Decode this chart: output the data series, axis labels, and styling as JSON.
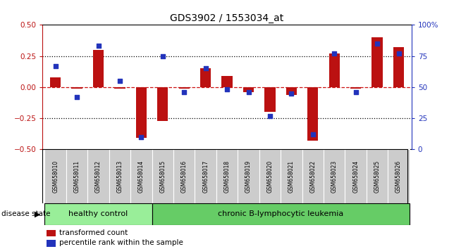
{
  "title": "GDS3902 / 1553034_at",
  "samples": [
    "GSM658010",
    "GSM658011",
    "GSM658012",
    "GSM658013",
    "GSM658014",
    "GSM658015",
    "GSM658016",
    "GSM658017",
    "GSM658018",
    "GSM658019",
    "GSM658020",
    "GSM658021",
    "GSM658022",
    "GSM658023",
    "GSM658024",
    "GSM658025",
    "GSM658026"
  ],
  "red_values": [
    0.08,
    -0.01,
    0.3,
    -0.01,
    -0.41,
    -0.27,
    -0.01,
    0.15,
    0.09,
    -0.04,
    -0.2,
    -0.06,
    -0.43,
    0.27,
    -0.01,
    0.4,
    0.32
  ],
  "blue_pct": [
    67,
    42,
    83,
    55,
    10,
    75,
    46,
    65,
    48,
    46,
    27,
    45,
    12,
    77,
    46,
    85,
    77
  ],
  "healthy_count": 5,
  "group1_label": "healthy control",
  "group2_label": "chronic B-lymphocytic leukemia",
  "disease_state_label": "disease state",
  "legend_red": "transformed count",
  "legend_blue": "percentile rank within the sample",
  "bar_color": "#bb1111",
  "dot_color": "#2233bb",
  "bg_color": "#ffffff",
  "zero_line_color": "#cc1111",
  "group1_color": "#99ee99",
  "group2_color": "#66cc66",
  "label_bg": "#cccccc",
  "ylim_left": [
    -0.5,
    0.5
  ],
  "ylim_right": [
    0,
    100
  ],
  "yticks_left": [
    -0.5,
    -0.25,
    0.0,
    0.25,
    0.5
  ],
  "yticks_right": [
    0,
    25,
    50,
    75,
    100
  ]
}
